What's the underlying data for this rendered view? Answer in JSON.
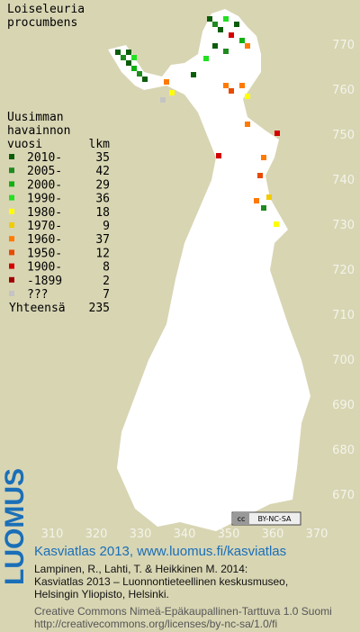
{
  "title": [
    "Loiseleuria",
    "procumbens"
  ],
  "legend": {
    "heading": [
      "Uusimman",
      "havainnon",
      "vuosi"
    ],
    "count_heading": "lkm",
    "items": [
      {
        "label": "2010-",
        "count": 35,
        "color": "#0b5d0b"
      },
      {
        "label": "2005-",
        "count": 42,
        "color": "#1f8a1f"
      },
      {
        "label": "2000-",
        "count": 29,
        "color": "#10b010"
      },
      {
        "label": "1990-",
        "count": 36,
        "color": "#22e022"
      },
      {
        "label": "1980-",
        "count": 18,
        "color": "#ffff00"
      },
      {
        "label": "1970-",
        "count": 9,
        "color": "#f0cc00"
      },
      {
        "label": "1960-",
        "count": 37,
        "color": "#ff7a00"
      },
      {
        "label": "1950-",
        "count": 12,
        "color": "#e84a00"
      },
      {
        "label": "1900-",
        "count": 8,
        "color": "#d40000"
      },
      {
        "label": "-1899",
        "count": 2,
        "color": "#a00000"
      },
      {
        "label": "???",
        "count": 7,
        "color": "#c4c4c4"
      }
    ],
    "total_label": "Yhteensä",
    "total": 235
  },
  "x_labels": [
    310,
    320,
    330,
    340,
    350,
    360,
    370
  ],
  "y_labels": [
    670,
    680,
    690,
    700,
    710,
    720,
    730,
    740,
    750,
    760,
    770
  ],
  "badge": "BY-NC-SA",
  "footer": {
    "logo": "LUOMUS",
    "title": "Kasviatlas 2013, www.luomus.fi/kasviatlas",
    "citation": [
      "Lampinen, R., Lahti, T. & Heikkinen M. 2014:",
      "Kasviatlas 2013 – Luonnontieteellinen keskusmuseo,",
      "Helsingin Yliopisto, Helsinki."
    ],
    "license": [
      "Creative Commons Nimeä-Epäkaupallinen-Tarttuva 1.0 Suomi",
      "http://creativecommons.org/licenses/by-nc-sa/1.0/fi"
    ]
  }
}
